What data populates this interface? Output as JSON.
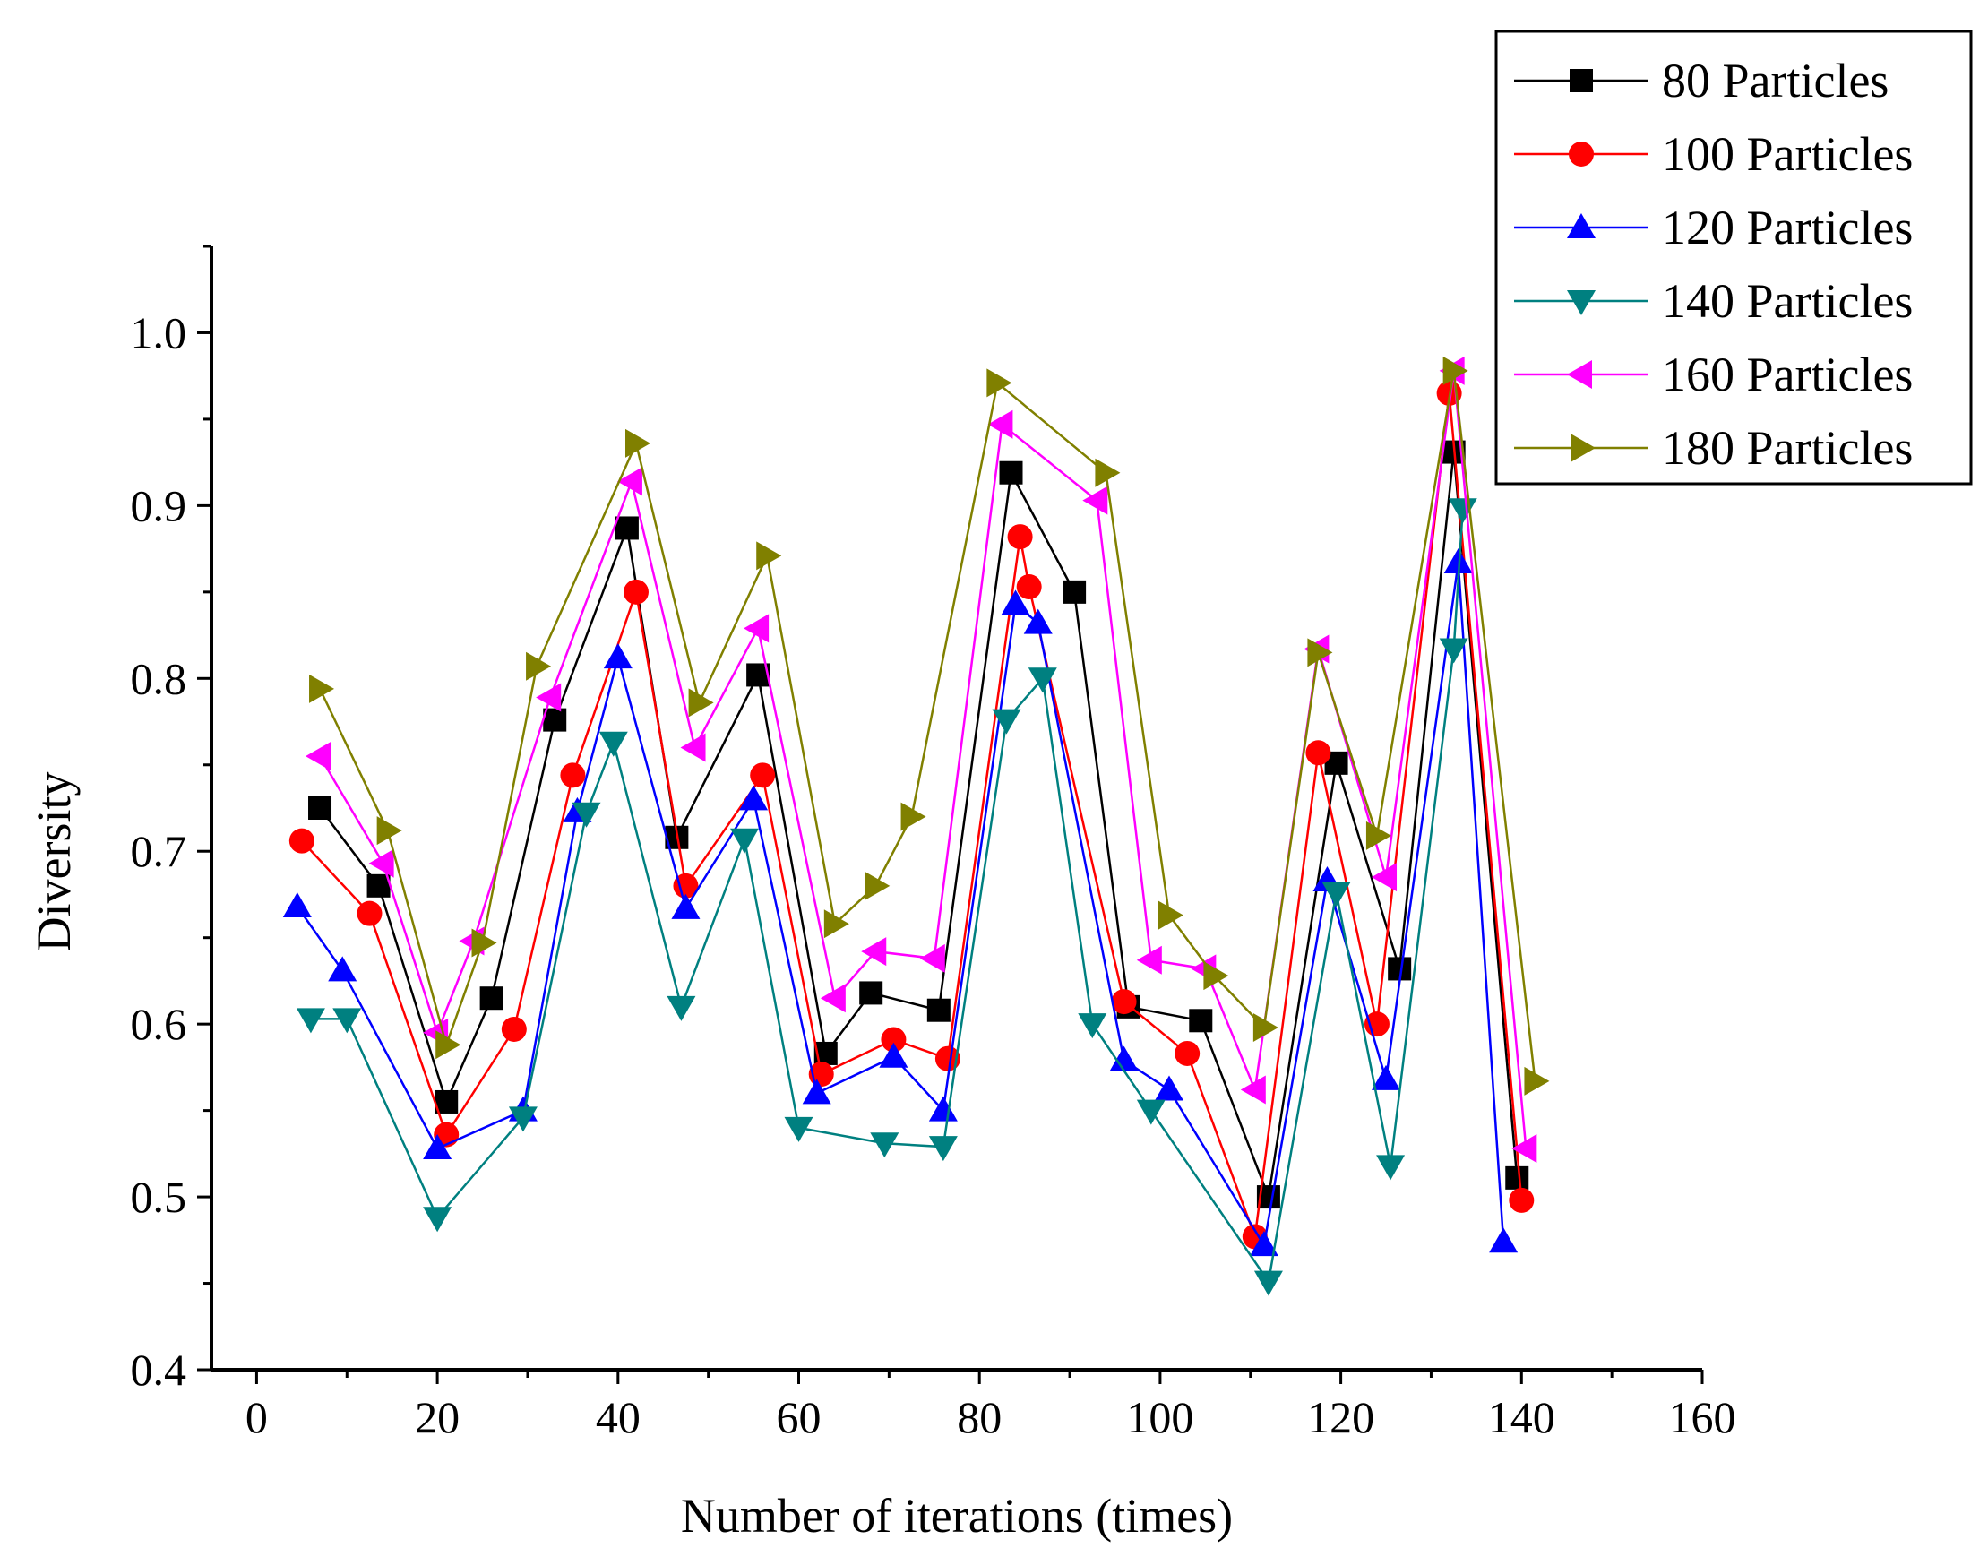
{
  "chart_data": {
    "type": "line",
    "title": "",
    "xlabel": "Number of iterations (times)",
    "ylabel": "Diversity",
    "xlim": [
      -5,
      160
    ],
    "ylim": [
      0.4,
      1.05
    ],
    "xticks": [
      "0",
      "20",
      "40",
      "60",
      "80",
      "100",
      "120",
      "140",
      "160"
    ],
    "xtick_values": [
      0,
      20,
      40,
      60,
      80,
      100,
      120,
      140,
      160
    ],
    "yticks": [
      "0.4",
      "0.5",
      "0.6",
      "0.7",
      "0.8",
      "0.9",
      "1.0"
    ],
    "ytick_values": [
      0.4,
      0.5,
      0.6,
      0.7,
      0.8,
      0.9,
      1.0
    ],
    "grid": false,
    "legend_position": "top-right",
    "series": [
      {
        "name": "80 Particles",
        "color": "#000000",
        "marker": "square",
        "x": [
          7,
          13.5,
          21,
          26,
          33,
          41,
          46.5,
          55.5,
          63,
          68,
          75.5,
          83.5,
          90.5,
          96.5,
          104.5,
          112,
          119.5,
          126.5,
          132.5,
          139.5
        ],
        "y": [
          0.725,
          0.68,
          0.555,
          0.615,
          0.776,
          0.887,
          0.708,
          0.802,
          0.583,
          0.618,
          0.608,
          0.919,
          0.85,
          0.61,
          0.602,
          0.5,
          0.751,
          0.632,
          0.931,
          0.511
        ]
      },
      {
        "name": "100 Particles",
        "color": "#ff0000",
        "marker": "circle",
        "x": [
          5,
          12.5,
          21,
          28.5,
          35,
          42,
          47.5,
          56,
          62.5,
          70.5,
          76.5,
          84.5,
          85.5,
          96,
          103,
          110.5,
          117.5,
          124,
          132,
          140
        ],
        "y": [
          0.706,
          0.664,
          0.536,
          0.597,
          0.744,
          0.85,
          0.68,
          0.744,
          0.571,
          0.591,
          0.58,
          0.882,
          0.853,
          0.613,
          0.583,
          0.477,
          0.757,
          0.6,
          0.965,
          0.498
        ]
      },
      {
        "name": "120 Particles",
        "color": "#0000ff",
        "marker": "triangle-up",
        "x": [
          4.5,
          9.5,
          20,
          29.5,
          35.5,
          40,
          47.5,
          55,
          62,
          70.5,
          76,
          84,
          86.5,
          96,
          101,
          111.5,
          118.5,
          125,
          133,
          138
        ],
        "y": [
          0.668,
          0.631,
          0.528,
          0.55,
          0.723,
          0.812,
          0.667,
          0.73,
          0.56,
          0.581,
          0.55,
          0.843,
          0.832,
          0.579,
          0.562,
          0.472,
          0.683,
          0.568,
          0.867,
          0.474
        ]
      },
      {
        "name": "140 Particles",
        "color": "#008080",
        "marker": "triangle-down",
        "x": [
          6,
          10,
          20,
          29.5,
          36.5,
          39.5,
          47,
          54,
          60,
          69.5,
          76,
          83,
          87,
          92.5,
          99,
          112,
          119.5,
          125.5,
          132.5,
          133.5
        ],
        "y": [
          0.603,
          0.603,
          0.488,
          0.546,
          0.722,
          0.763,
          0.61,
          0.707,
          0.54,
          0.531,
          0.529,
          0.776,
          0.8,
          0.6,
          0.55,
          0.451,
          0.676,
          0.518,
          0.817,
          0.898
        ]
      },
      {
        "name": "160 Particles",
        "color": "#ff00ff",
        "marker": "triangle-left",
        "x": [
          7,
          14,
          20,
          24,
          32.5,
          41.5,
          48.5,
          55.5,
          64,
          68.5,
          75,
          82.5,
          93,
          99,
          105,
          110.5,
          117.5,
          125,
          132.5,
          140.5
        ],
        "y": [
          0.755,
          0.693,
          0.595,
          0.648,
          0.789,
          0.914,
          0.76,
          0.829,
          0.615,
          0.642,
          0.638,
          0.947,
          0.903,
          0.637,
          0.632,
          0.562,
          0.817,
          0.685,
          0.978,
          0.528
        ]
      },
      {
        "name": "180 Particles",
        "color": "#808000",
        "marker": "triangle-right",
        "x": [
          7,
          14.5,
          21,
          25,
          31,
          42,
          49,
          56.5,
          64,
          68.5,
          72.5,
          82,
          94,
          101,
          106,
          111.5,
          117.5,
          124,
          132.5,
          141.5
        ],
        "y": [
          0.794,
          0.712,
          0.588,
          0.647,
          0.807,
          0.936,
          0.786,
          0.871,
          0.658,
          0.68,
          0.72,
          0.971,
          0.919,
          0.663,
          0.628,
          0.598,
          0.815,
          0.709,
          0.978,
          0.567
        ]
      }
    ]
  }
}
